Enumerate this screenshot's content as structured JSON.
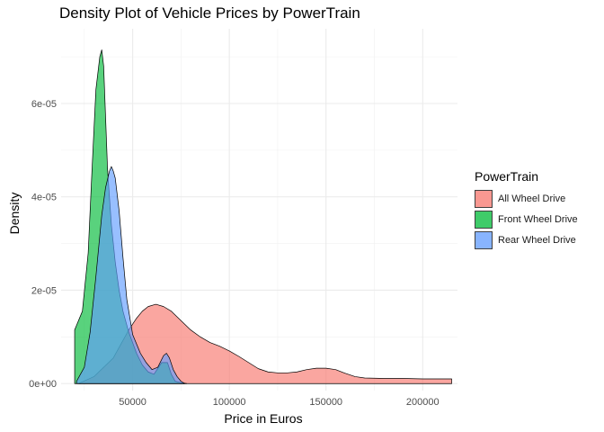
{
  "chart_data": {
    "type": "area",
    "title": "Density Plot of Vehicle Prices by PowerTrain",
    "xlabel": "Price in Euros",
    "ylabel": "Density",
    "xlim": [
      13000,
      218000
    ],
    "ylim": [
      -1.5e-06,
      7.6e-05
    ],
    "x_ticks": [
      50000,
      100000,
      150000,
      200000
    ],
    "x_tick_labels": [
      "50000",
      "100000",
      "150000",
      "200000"
    ],
    "y_ticks": [
      0,
      2e-05,
      4e-05,
      6e-05
    ],
    "y_tick_labels": [
      "0e+00",
      "2e-05",
      "4e-05",
      "6e-05"
    ],
    "grid": true,
    "legend": {
      "title": "PowerTrain",
      "position": "right"
    },
    "series": [
      {
        "name": "All Wheel Drive",
        "color": "#F8766D",
        "x": [
          22000,
          30000,
          40000,
          48000,
          52000,
          55000,
          58000,
          62000,
          66000,
          70000,
          75000,
          80000,
          85000,
          90000,
          95000,
          100000,
          105000,
          110000,
          115000,
          120000,
          125000,
          130000,
          135000,
          140000,
          145000,
          150000,
          155000,
          160000,
          165000,
          170000,
          180000,
          190000,
          200000,
          215000
        ],
        "y": [
          0,
          1.5e-06,
          5.5e-06,
          1.15e-05,
          1.4e-05,
          1.55e-05,
          1.65e-05,
          1.7e-05,
          1.65e-05,
          1.55e-05,
          1.35e-05,
          1.15e-05,
          1e-05,
          8.8e-06,
          8e-06,
          7e-06,
          5.8e-06,
          4.5e-06,
          3.2e-06,
          2.5e-06,
          2.3e-06,
          2.3e-06,
          2.5e-06,
          3e-06,
          3.3e-06,
          3.3e-06,
          3e-06,
          2.2e-06,
          1.5e-06,
          1.2e-06,
          1.1e-06,
          1.1e-06,
          1e-06,
          1e-06
        ]
      },
      {
        "name": "Front Wheel Drive",
        "color": "#00BA38",
        "x": [
          20000,
          21000,
          24000,
          27000,
          29000,
          31000,
          33000,
          34000,
          35000,
          36000,
          37000,
          39000,
          41000,
          43000,
          45000,
          48000,
          52000,
          55000,
          58000,
          61000,
          65000,
          68000,
          70000,
          72000,
          75000,
          78000
        ],
        "y": [
          1.15e-05,
          1.25e-05,
          1.55e-05,
          2.8e-05,
          4.6e-05,
          6.3e-05,
          7e-05,
          7.15e-05,
          6.8e-05,
          5.7e-05,
          4.6e-05,
          3.4e-05,
          2.6e-05,
          2e-05,
          1.55e-05,
          1.1e-05,
          6.5e-06,
          4e-06,
          2.5e-06,
          2e-06,
          4.5e-06,
          4.5e-06,
          2e-06,
          5e-07,
          2e-07,
          0
        ]
      },
      {
        "name": "Rear Wheel Drive",
        "color": "#619CFF",
        "x": [
          21000,
          25000,
          28000,
          31000,
          34000,
          36000,
          38000,
          39000,
          40000,
          41000,
          43000,
          45000,
          47000,
          50000,
          52000,
          54000,
          57000,
          60000,
          63000,
          66000,
          67500,
          69000,
          71000,
          73000,
          75000,
          77000
        ],
        "y": [
          5e-07,
          3.5e-06,
          1.1e-05,
          2.3e-05,
          3.6e-05,
          4.2e-05,
          4.55e-05,
          4.65e-05,
          4.55e-05,
          4.4e-05,
          3.7e-05,
          2.7e-05,
          1.8e-05,
          1.05e-05,
          8.5e-06,
          6.5e-06,
          4.5e-06,
          3e-06,
          3.5e-06,
          6e-06,
          6.5e-06,
          5.5e-06,
          3e-06,
          1.5e-06,
          5e-07,
          0
        ]
      }
    ]
  }
}
